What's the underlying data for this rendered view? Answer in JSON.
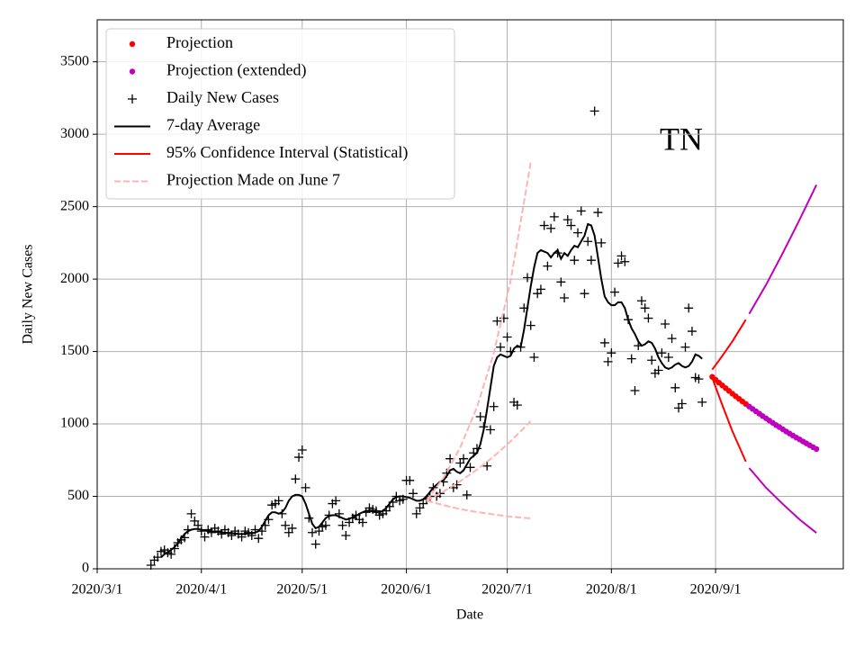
{
  "chart_data": {
    "type": "line",
    "annotation": "TN",
    "x_label": "Date",
    "y_label": "Daily New Cases",
    "xlim": [
      "2020-03-01",
      "2020-10-09"
    ],
    "ylim": [
      0,
      3790
    ],
    "xticks": [
      {
        "value": "2020-03-01",
        "label": "2020/3/1"
      },
      {
        "value": "2020-04-01",
        "label": "2020/4/1"
      },
      {
        "value": "2020-05-01",
        "label": "2020/5/1"
      },
      {
        "value": "2020-06-01",
        "label": "2020/6/1"
      },
      {
        "value": "2020-07-01",
        "label": "2020/7/1"
      },
      {
        "value": "2020-08-01",
        "label": "2020/8/1"
      },
      {
        "value": "2020-09-01",
        "label": "2020/9/1"
      }
    ],
    "yticks": [
      0,
      500,
      1000,
      1500,
      2000,
      2500,
      3000,
      3500
    ],
    "grid": true,
    "legend": "upper left",
    "x": [
      "2020-03-17",
      "2020-03-18",
      "2020-03-19",
      "2020-03-20",
      "2020-03-21",
      "2020-03-22",
      "2020-03-23",
      "2020-03-24",
      "2020-03-25",
      "2020-03-26",
      "2020-03-27",
      "2020-03-28",
      "2020-03-29",
      "2020-03-30",
      "2020-03-31",
      "2020-04-01",
      "2020-04-02",
      "2020-04-03",
      "2020-04-04",
      "2020-04-05",
      "2020-04-06",
      "2020-04-07",
      "2020-04-08",
      "2020-04-09",
      "2020-04-10",
      "2020-04-11",
      "2020-04-12",
      "2020-04-13",
      "2020-04-14",
      "2020-04-15",
      "2020-04-16",
      "2020-04-17",
      "2020-04-18",
      "2020-04-19",
      "2020-04-20",
      "2020-04-21",
      "2020-04-22",
      "2020-04-23",
      "2020-04-24",
      "2020-04-25",
      "2020-04-26",
      "2020-04-27",
      "2020-04-28",
      "2020-04-29",
      "2020-04-30",
      "2020-05-01",
      "2020-05-02",
      "2020-05-03",
      "2020-05-04",
      "2020-05-05",
      "2020-05-06",
      "2020-05-07",
      "2020-05-08",
      "2020-05-09",
      "2020-05-10",
      "2020-05-11",
      "2020-05-12",
      "2020-05-13",
      "2020-05-14",
      "2020-05-15",
      "2020-05-16",
      "2020-05-17",
      "2020-05-18",
      "2020-05-19",
      "2020-05-20",
      "2020-05-21",
      "2020-05-22",
      "2020-05-23",
      "2020-05-24",
      "2020-05-25",
      "2020-05-26",
      "2020-05-27",
      "2020-05-28",
      "2020-05-29",
      "2020-05-30",
      "2020-05-31",
      "2020-06-01",
      "2020-06-02",
      "2020-06-03",
      "2020-06-04",
      "2020-06-05",
      "2020-06-06",
      "2020-06-07",
      "2020-06-08",
      "2020-06-09",
      "2020-06-10",
      "2020-06-11",
      "2020-06-12",
      "2020-06-13",
      "2020-06-14",
      "2020-06-15",
      "2020-06-16",
      "2020-06-17",
      "2020-06-18",
      "2020-06-19",
      "2020-06-20",
      "2020-06-21",
      "2020-06-22",
      "2020-06-23",
      "2020-06-24",
      "2020-06-25",
      "2020-06-26",
      "2020-06-27",
      "2020-06-28",
      "2020-06-29",
      "2020-06-30",
      "2020-07-01",
      "2020-07-02",
      "2020-07-03",
      "2020-07-04",
      "2020-07-05",
      "2020-07-06",
      "2020-07-07",
      "2020-07-08",
      "2020-07-09",
      "2020-07-10",
      "2020-07-11",
      "2020-07-12",
      "2020-07-13",
      "2020-07-14",
      "2020-07-15",
      "2020-07-16",
      "2020-07-17",
      "2020-07-18",
      "2020-07-19",
      "2020-07-20",
      "2020-07-21",
      "2020-07-22",
      "2020-07-23",
      "2020-07-24",
      "2020-07-25",
      "2020-07-26",
      "2020-07-27",
      "2020-07-28",
      "2020-07-29",
      "2020-07-30",
      "2020-07-31",
      "2020-08-01",
      "2020-08-02",
      "2020-08-03",
      "2020-08-04",
      "2020-08-05",
      "2020-08-06",
      "2020-08-07",
      "2020-08-08",
      "2020-08-09",
      "2020-08-10",
      "2020-08-11",
      "2020-08-12",
      "2020-08-13",
      "2020-08-14",
      "2020-08-15",
      "2020-08-16",
      "2020-08-17",
      "2020-08-18",
      "2020-08-19",
      "2020-08-20",
      "2020-08-21",
      "2020-08-22",
      "2020-08-23",
      "2020-08-24",
      "2020-08-25",
      "2020-08-26",
      "2020-08-27",
      "2020-08-28"
    ],
    "series": [
      {
        "name": "Projection",
        "color": "#ff0000",
        "style": "dot",
        "x": [
          "2020-08-31",
          "2020-09-01",
          "2020-09-02",
          "2020-09-03",
          "2020-09-04",
          "2020-09-05",
          "2020-09-06",
          "2020-09-07",
          "2020-09-08",
          "2020-09-09",
          "2020-09-10"
        ],
        "values": [
          1325,
          1305,
          1285,
          1266,
          1247,
          1228,
          1209,
          1191,
          1173,
          1155,
          1138
        ]
      },
      {
        "name": "Projection (extended)",
        "color": "#bf00bf",
        "style": "dot",
        "x": [
          "2020-09-11",
          "2020-09-12",
          "2020-09-13",
          "2020-09-14",
          "2020-09-15",
          "2020-09-16",
          "2020-09-17",
          "2020-09-18",
          "2020-09-19",
          "2020-09-20",
          "2020-09-21",
          "2020-09-22",
          "2020-09-23",
          "2020-09-24",
          "2020-09-25",
          "2020-09-26",
          "2020-09-27",
          "2020-09-28",
          "2020-09-29",
          "2020-09-30",
          "2020-10-01"
        ],
        "values": [
          1120,
          1104,
          1087,
          1071,
          1054,
          1039,
          1023,
          1008,
          992,
          978,
          963,
          948,
          934,
          920,
          906,
          893,
          879,
          866,
          853,
          840,
          827
        ]
      },
      {
        "name": "Daily New Cases",
        "color": "#000000",
        "style": "plus",
        "values": [
          25,
          60,
          80,
          120,
          130,
          110,
          100,
          140,
          180,
          200,
          215,
          270,
          380,
          330,
          300,
          260,
          220,
          270,
          250,
          280,
          260,
          240,
          270,
          250,
          230,
          260,
          240,
          220,
          260,
          250,
          230,
          270,
          210,
          260,
          300,
          340,
          440,
          450,
          470,
          380,
          300,
          250,
          280,
          620,
          770,
          820,
          560,
          350,
          250,
          170,
          260,
          290,
          300,
          370,
          450,
          470,
          380,
          300,
          230,
          320,
          350,
          370,
          340,
          320,
          390,
          420,
          410,
          400,
          370,
          380,
          400,
          430,
          460,
          500,
          470,
          480,
          610,
          610,
          520,
          380,
          420,
          450,
          480,
          500,
          560,
          500,
          520,
          600,
          660,
          760,
          560,
          580,
          730,
          760,
          510,
          700,
          800,
          830,
          1050,
          980,
          710,
          960,
          1120,
          1710,
          1530,
          1730,
          1600,
          1500,
          1150,
          1130,
          1530,
          1800,
          2010,
          1680,
          1460,
          1900,
          1930,
          2370,
          2090,
          2350,
          2430,
          2180,
          1980,
          1870,
          2410,
          2370,
          2130,
          2320,
          2470,
          1900,
          2260,
          2130,
          3160,
          2460,
          2250,
          1560,
          1430,
          1490,
          1910,
          2110,
          2160,
          2120,
          1720,
          1450,
          1230,
          1540,
          1850,
          1800,
          1730,
          1440,
          1350,
          1370,
          1490,
          1690,
          1460,
          1590,
          1250,
          1110,
          1140,
          1530,
          1800,
          1640,
          1320,
          1310,
          1150
        ]
      },
      {
        "name": "7-day Average",
        "color": "#000000",
        "style": "line",
        "values": [
          null,
          null,
          null,
          80,
          100,
          115,
          130,
          150,
          175,
          210,
          240,
          260,
          270,
          275,
          275,
          270,
          265,
          260,
          260,
          255,
          255,
          250,
          250,
          245,
          245,
          245,
          240,
          240,
          240,
          245,
          245,
          250,
          260,
          290,
          330,
          370,
          390,
          390,
          380,
          390,
          420,
          470,
          500,
          510,
          510,
          500,
          450,
          380,
          310,
          280,
          290,
          320,
          350,
          365,
          370,
          370,
          360,
          350,
          340,
          345,
          355,
          365,
          380,
          390,
          400,
          400,
          395,
          390,
          390,
          400,
          420,
          450,
          480,
          495,
          500,
          500,
          495,
          490,
          480,
          470,
          470,
          480,
          500,
          530,
          560,
          580,
          600,
          610,
          640,
          680,
          690,
          670,
          660,
          680,
          720,
          760,
          780,
          800,
          860,
          960,
          1100,
          1250,
          1400,
          1460,
          1480,
          1470,
          1460,
          1470,
          1520,
          1540,
          1530,
          1650,
          1800,
          1950,
          2080,
          2180,
          2200,
          2190,
          2180,
          2150,
          2180,
          2200,
          2140,
          2180,
          2160,
          2200,
          2230,
          2220,
          2260,
          2300,
          2380,
          2370,
          2300,
          2150,
          2000,
          1880,
          1840,
          1820,
          1820,
          1840,
          1840,
          1800,
          1720,
          1660,
          1620,
          1570,
          1540,
          1550,
          1570,
          1560,
          1520,
          1460,
          1420,
          1390,
          1380,
          1390,
          1410,
          1420,
          1400,
          1390,
          1400,
          1430,
          1480,
          1470,
          1450
        ]
      },
      {
        "name": "95% Confidence Interval (Statistical)",
        "color": "#ff0000",
        "style": "line",
        "x": [
          "2020-08-31",
          "2020-09-03",
          "2020-09-06",
          "2020-09-10"
        ],
        "values": [
          1375,
          1470,
          1570,
          1720
        ]
      },
      {
        "name": "Projection Made on June 7",
        "color": "#ffb3b3",
        "style": "dashed",
        "x": [
          "2020-06-07",
          "2020-06-12",
          "2020-06-17",
          "2020-06-22",
          "2020-06-27",
          "2020-07-02",
          "2020-07-08"
        ],
        "values": [
          470,
          627,
          836,
          1116,
          1489,
          1986,
          2806
        ]
      },
      {
        "color": "#ff0000",
        "style": "line",
        "x": [
          "2020-08-31",
          "2020-09-03",
          "2020-09-06",
          "2020-09-10"
        ],
        "values": [
          1318,
          1130,
          950,
          740
        ]
      },
      {
        "color": "#bf00bf",
        "style": "line",
        "x": [
          "2020-09-11",
          "2020-09-16",
          "2020-09-21",
          "2020-09-26",
          "2020-10-01"
        ],
        "values": [
          1760,
          1960,
          2180,
          2410,
          2650
        ]
      },
      {
        "color": "#bf00bf",
        "style": "line",
        "x": [
          "2020-09-11",
          "2020-09-16",
          "2020-09-21",
          "2020-09-26",
          "2020-10-01"
        ],
        "values": [
          696,
          560,
          447,
          340,
          248
        ]
      },
      {
        "color": "#ffb3b3",
        "style": "dashed",
        "x": [
          "2020-06-07",
          "2020-06-12",
          "2020-06-17",
          "2020-06-22",
          "2020-06-27",
          "2020-07-02",
          "2020-07-08"
        ],
        "values": [
          470,
          533,
          604,
          685,
          776,
          880,
          1020
        ]
      },
      {
        "color": "#ffb3b3",
        "style": "dashed",
        "x": [
          "2020-06-07",
          "2020-06-12",
          "2020-06-17",
          "2020-06-22",
          "2020-06-27",
          "2020-07-02",
          "2020-07-08"
        ],
        "values": [
          470,
          440,
          412,
          392,
          375,
          360,
          348
        ]
      }
    ]
  }
}
